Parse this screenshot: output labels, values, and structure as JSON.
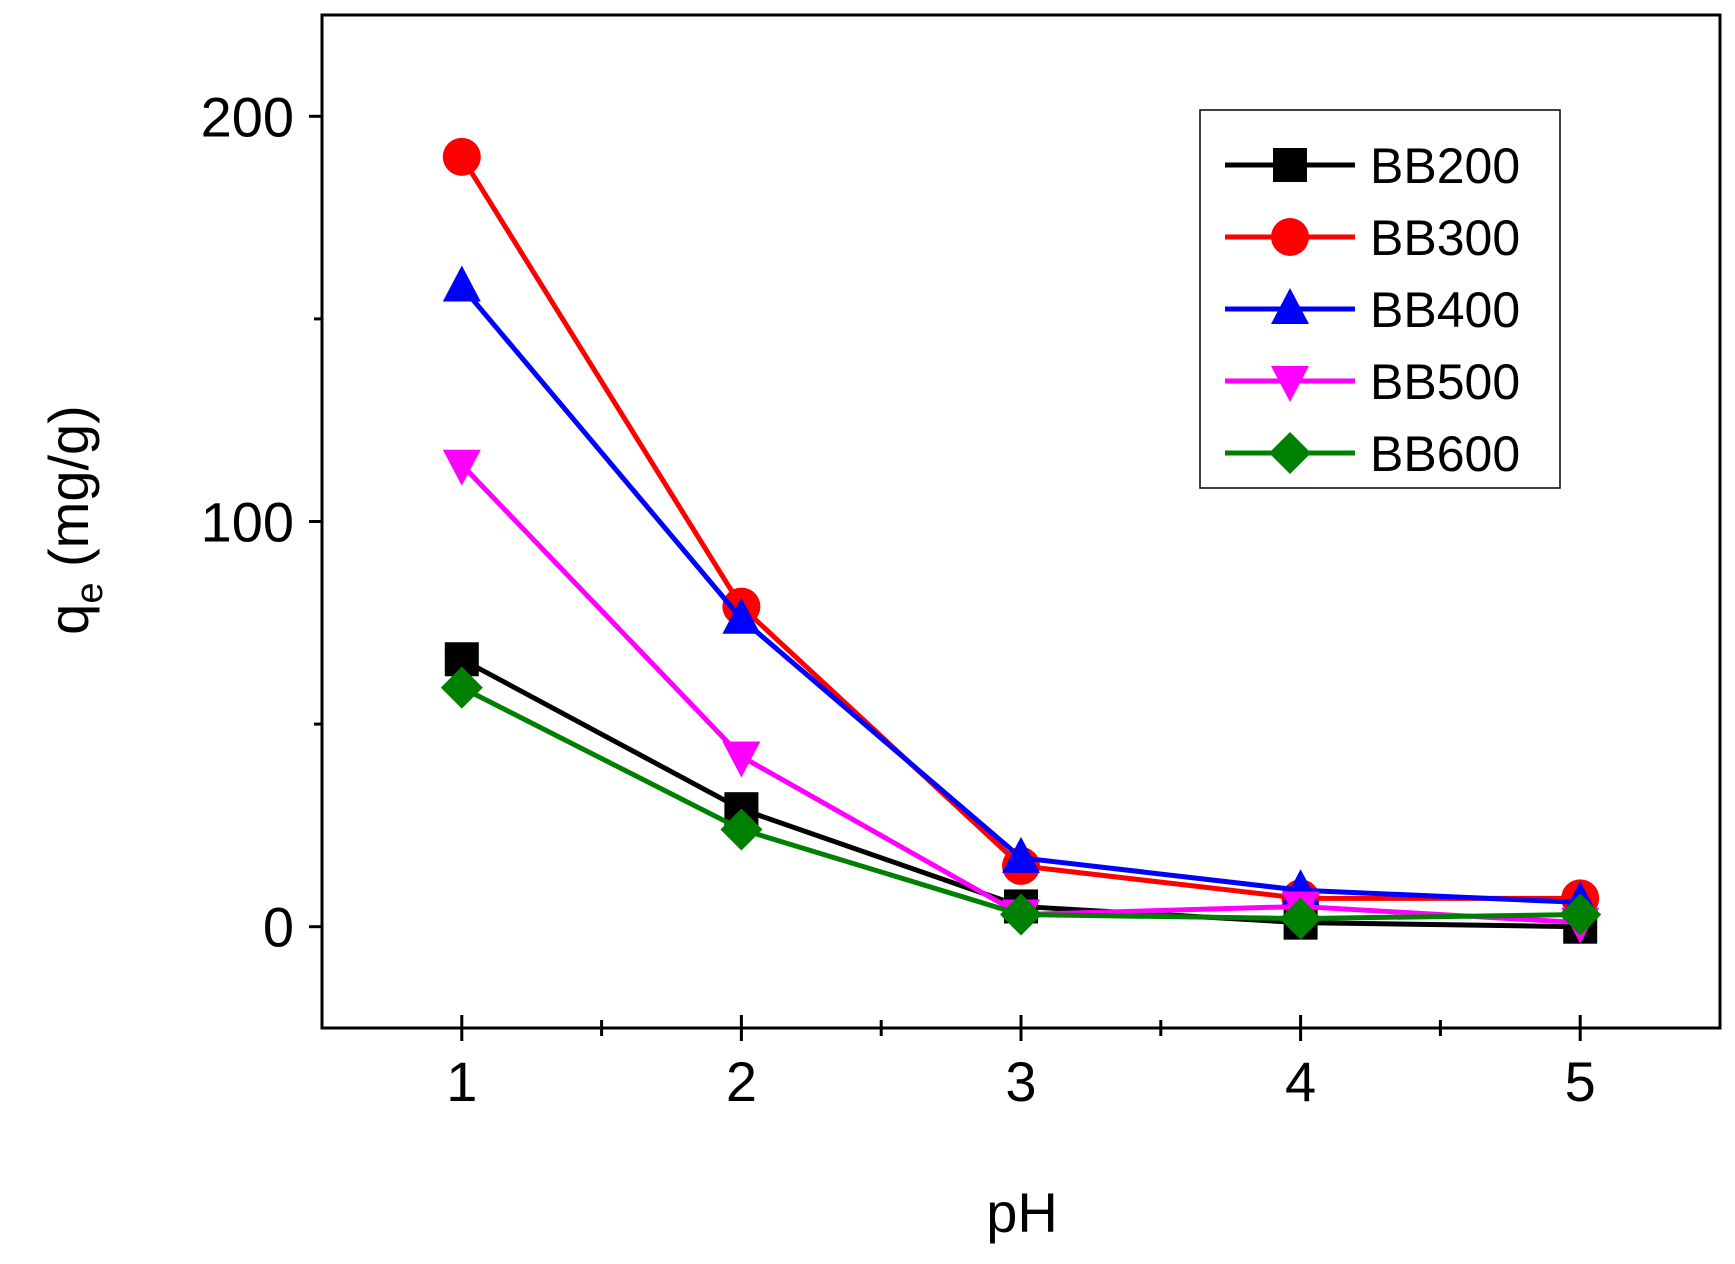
{
  "chart_data": {
    "type": "line",
    "title": "",
    "xlabel": "pH",
    "ylabel_main": "q",
    "ylabel_sub": "e",
    "ylabel_unit": "(mg/g)",
    "x": [
      1,
      2,
      3,
      4,
      5
    ],
    "xlim": [
      0.5,
      5.5
    ],
    "ylim": [
      -25,
      225
    ],
    "x_ticks": [
      1,
      2,
      3,
      4,
      5
    ],
    "x_minor_ticks": [
      1.5,
      2.5,
      3.5,
      4.5
    ],
    "y_ticks": [
      0,
      100,
      200
    ],
    "y_minor_ticks": [
      50,
      150
    ],
    "grid": false,
    "legend_position": "top-right",
    "series": [
      {
        "name": "BB200",
        "color": "#000000",
        "marker": "square",
        "values": [
          66,
          29,
          5,
          1,
          0
        ]
      },
      {
        "name": "BB300",
        "color": "#ff0000",
        "marker": "circle",
        "values": [
          190,
          79,
          15,
          7,
          7
        ]
      },
      {
        "name": "BB400",
        "color": "#0000ff",
        "marker": "triangle-up",
        "values": [
          158,
          76,
          17,
          9,
          6
        ]
      },
      {
        "name": "BB500",
        "color": "#ff00ff",
        "marker": "triangle-down",
        "values": [
          114,
          42,
          3,
          5,
          1
        ]
      },
      {
        "name": "BB600",
        "color": "#008000",
        "marker": "diamond",
        "values": [
          59,
          24,
          3,
          2,
          3
        ]
      }
    ]
  }
}
